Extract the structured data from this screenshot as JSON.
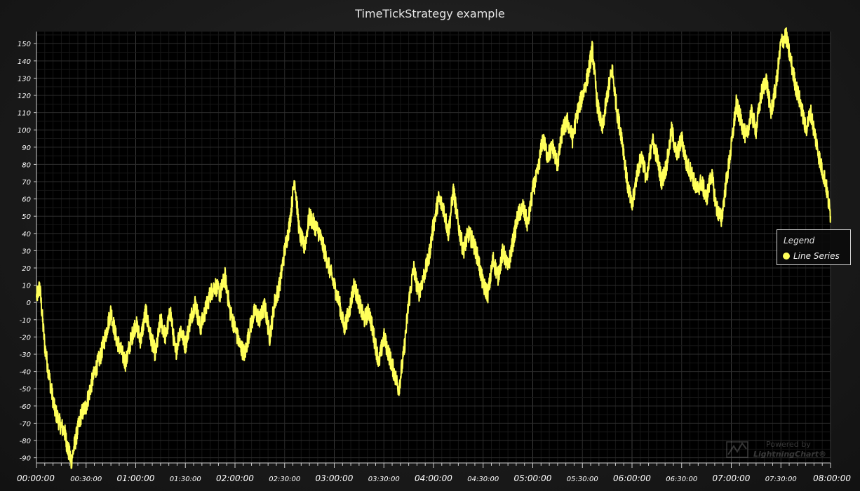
{
  "chart_data": {
    "type": "line",
    "title": "TimeTickStrategy example",
    "xlabel": "",
    "ylabel": "",
    "x_unit": "time (HH:MM:SS)",
    "xlim": [
      "00:00:00",
      "08:00:00"
    ],
    "ylim": [
      -93,
      157
    ],
    "x_major_ticks": [
      "00:00:00",
      "01:00:00",
      "02:00:00",
      "03:00:00",
      "04:00:00",
      "05:00:00",
      "06:00:00",
      "07:00:00",
      "08:00:00"
    ],
    "x_minor_ticks": [
      "00:30:00",
      "01:30:00",
      "02:30:00",
      "03:30:00",
      "04:30:00",
      "05:30:00",
      "06:30:00",
      "07:30:00"
    ],
    "y_ticks": [
      -90,
      -80,
      -70,
      -60,
      -50,
      -40,
      -30,
      -20,
      -10,
      0,
      10,
      20,
      30,
      40,
      50,
      60,
      70,
      80,
      90,
      100,
      110,
      120,
      130,
      140,
      150
    ],
    "grid": true,
    "legend_position": "right",
    "series": [
      {
        "name": "Line Series",
        "color": "#ffff5a",
        "points": [
          [
            "00:00:00",
            3
          ],
          [
            "00:02:00",
            9
          ],
          [
            "00:05:00",
            -25
          ],
          [
            "00:08:00",
            -45
          ],
          [
            "00:11:00",
            -62
          ],
          [
            "00:14:00",
            -70
          ],
          [
            "00:17:00",
            -75
          ],
          [
            "00:19:00",
            -85
          ],
          [
            "00:21:00",
            -92
          ],
          [
            "00:24:00",
            -78
          ],
          [
            "00:27:00",
            -65
          ],
          [
            "00:30:00",
            -60
          ],
          [
            "00:33:00",
            -48
          ],
          [
            "00:36:00",
            -38
          ],
          [
            "00:39:00",
            -30
          ],
          [
            "00:42:00",
            -18
          ],
          [
            "00:45:00",
            -5
          ],
          [
            "00:48:00",
            -20
          ],
          [
            "00:51:00",
            -28
          ],
          [
            "00:54:00",
            -35
          ],
          [
            "00:57:00",
            -22
          ],
          [
            "01:00:00",
            -12
          ],
          [
            "01:03:00",
            -22
          ],
          [
            "01:06:00",
            -5
          ],
          [
            "01:09:00",
            -20
          ],
          [
            "01:12:00",
            -30
          ],
          [
            "01:15:00",
            -10
          ],
          [
            "01:18:00",
            -20
          ],
          [
            "01:21:00",
            -5
          ],
          [
            "01:24:00",
            -30
          ],
          [
            "01:27:00",
            -15
          ],
          [
            "01:30:00",
            -25
          ],
          [
            "01:33:00",
            -10
          ],
          [
            "01:36:00",
            0
          ],
          [
            "01:39:00",
            -15
          ],
          [
            "01:42:00",
            -5
          ],
          [
            "01:45:00",
            5
          ],
          [
            "01:48:00",
            10
          ],
          [
            "01:51:00",
            5
          ],
          [
            "01:54:00",
            15
          ],
          [
            "01:57:00",
            -5
          ],
          [
            "02:00:00",
            -15
          ],
          [
            "02:03:00",
            -25
          ],
          [
            "02:06:00",
            -30
          ],
          [
            "02:09:00",
            -15
          ],
          [
            "02:12:00",
            -5
          ],
          [
            "02:15:00",
            -10
          ],
          [
            "02:18:00",
            -2
          ],
          [
            "02:21:00",
            -20
          ],
          [
            "02:24:00",
            0
          ],
          [
            "02:27:00",
            10
          ],
          [
            "02:30:00",
            30
          ],
          [
            "02:33:00",
            45
          ],
          [
            "02:36:00",
            72
          ],
          [
            "02:39:00",
            40
          ],
          [
            "02:42:00",
            32
          ],
          [
            "02:45:00",
            50
          ],
          [
            "02:48:00",
            45
          ],
          [
            "02:51:00",
            40
          ],
          [
            "02:54:00",
            30
          ],
          [
            "02:57:00",
            20
          ],
          [
            "03:00:00",
            10
          ],
          [
            "03:03:00",
            0
          ],
          [
            "03:06:00",
            -15
          ],
          [
            "03:09:00",
            -5
          ],
          [
            "03:12:00",
            10
          ],
          [
            "03:15:00",
            0
          ],
          [
            "03:18:00",
            -10
          ],
          [
            "03:21:00",
            -5
          ],
          [
            "03:24:00",
            -20
          ],
          [
            "03:27:00",
            -35
          ],
          [
            "03:30:00",
            -20
          ],
          [
            "03:33:00",
            -30
          ],
          [
            "03:36:00",
            -40
          ],
          [
            "03:39:00",
            -50
          ],
          [
            "03:42:00",
            -30
          ],
          [
            "03:45:00",
            0
          ],
          [
            "03:48:00",
            20
          ],
          [
            "03:51:00",
            5
          ],
          [
            "03:54:00",
            15
          ],
          [
            "03:57:00",
            25
          ],
          [
            "04:00:00",
            45
          ],
          [
            "04:03:00",
            60
          ],
          [
            "04:06:00",
            55
          ],
          [
            "04:09:00",
            40
          ],
          [
            "04:12:00",
            65
          ],
          [
            "04:15:00",
            45
          ],
          [
            "04:18:00",
            30
          ],
          [
            "04:21:00",
            40
          ],
          [
            "04:24:00",
            35
          ],
          [
            "04:27:00",
            25
          ],
          [
            "04:30:00",
            10
          ],
          [
            "04:33:00",
            5
          ],
          [
            "04:36:00",
            25
          ],
          [
            "04:39:00",
            15
          ],
          [
            "04:42:00",
            30
          ],
          [
            "04:45:00",
            20
          ],
          [
            "04:48:00",
            35
          ],
          [
            "04:51:00",
            50
          ],
          [
            "04:54:00",
            55
          ],
          [
            "04:57:00",
            45
          ],
          [
            "05:00:00",
            65
          ],
          [
            "05:03:00",
            75
          ],
          [
            "05:06:00",
            95
          ],
          [
            "05:09:00",
            85
          ],
          [
            "05:12:00",
            90
          ],
          [
            "05:15:00",
            80
          ],
          [
            "05:18:00",
            100
          ],
          [
            "05:21:00",
            105
          ],
          [
            "05:24:00",
            95
          ],
          [
            "05:27:00",
            110
          ],
          [
            "05:30:00",
            120
          ],
          [
            "05:33:00",
            130
          ],
          [
            "05:36:00",
            147
          ],
          [
            "05:39:00",
            115
          ],
          [
            "05:42:00",
            100
          ],
          [
            "05:45:00",
            120
          ],
          [
            "05:48:00",
            135
          ],
          [
            "05:51:00",
            110
          ],
          [
            "05:54:00",
            95
          ],
          [
            "05:57:00",
            70
          ],
          [
            "06:00:00",
            55
          ],
          [
            "06:03:00",
            75
          ],
          [
            "06:06:00",
            85
          ],
          [
            "06:09:00",
            70
          ],
          [
            "06:12:00",
            95
          ],
          [
            "06:15:00",
            85
          ],
          [
            "06:18:00",
            70
          ],
          [
            "06:21:00",
            80
          ],
          [
            "06:24:00",
            100
          ],
          [
            "06:27:00",
            85
          ],
          [
            "06:30:00",
            95
          ],
          [
            "06:33:00",
            80
          ],
          [
            "06:36:00",
            75
          ],
          [
            "06:39:00",
            65
          ],
          [
            "06:42:00",
            70
          ],
          [
            "06:45:00",
            60
          ],
          [
            "06:48:00",
            75
          ],
          [
            "06:51:00",
            55
          ],
          [
            "06:54:00",
            48
          ],
          [
            "06:57:00",
            70
          ],
          [
            "07:00:00",
            90
          ],
          [
            "07:03:00",
            115
          ],
          [
            "07:06:00",
            105
          ],
          [
            "07:09:00",
            95
          ],
          [
            "07:12:00",
            110
          ],
          [
            "07:15:00",
            100
          ],
          [
            "07:18:00",
            120
          ],
          [
            "07:21:00",
            130
          ],
          [
            "07:24:00",
            110
          ],
          [
            "07:27:00",
            125
          ],
          [
            "07:30:00",
            150
          ],
          [
            "07:33:00",
            155
          ],
          [
            "07:36:00",
            140
          ],
          [
            "07:39:00",
            125
          ],
          [
            "07:42:00",
            115
          ],
          [
            "07:45:00",
            100
          ],
          [
            "07:48:00",
            110
          ],
          [
            "07:51:00",
            95
          ],
          [
            "07:54:00",
            80
          ],
          [
            "07:57:00",
            70
          ],
          [
            "08:00:00",
            50
          ]
        ]
      }
    ]
  },
  "legend": {
    "title": "Legend",
    "entries": [
      {
        "label": "Line Series",
        "color": "#ffff5a"
      }
    ]
  },
  "watermark": {
    "powered_by": "Powered by",
    "brand": "LightningChart®"
  }
}
